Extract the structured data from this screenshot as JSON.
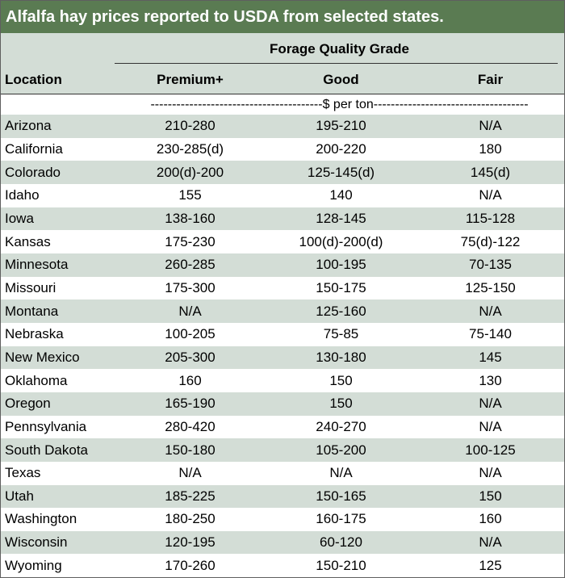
{
  "title": "Alfalfa hay prices reported to USDA from selected states.",
  "group_label": "Forage Quality Grade",
  "columns": {
    "location": "Location",
    "premium": "Premium+",
    "good": "Good",
    "fair": "Fair"
  },
  "units": "----------------------------------------$ per ton------------------------------------",
  "rows": [
    {
      "location": "Arizona",
      "premium": "210-280",
      "good": "195-210",
      "fair": "N/A"
    },
    {
      "location": "California",
      "premium": "230-285(d)",
      "good": "200-220",
      "fair": "180"
    },
    {
      "location": "Colorado",
      "premium": "200(d)-200",
      "good": "125-145(d)",
      "fair": "145(d)"
    },
    {
      "location": "Idaho",
      "premium": "155",
      "good": "140",
      "fair": "N/A"
    },
    {
      "location": "Iowa",
      "premium": "138-160",
      "good": "128-145",
      "fair": "115-128"
    },
    {
      "location": "Kansas",
      "premium": "175-230",
      "good": "100(d)-200(d)",
      "fair": "75(d)-122"
    },
    {
      "location": "Minnesota",
      "premium": "260-285",
      "good": "100-195",
      "fair": "70-135"
    },
    {
      "location": "Missouri",
      "premium": "175-300",
      "good": "150-175",
      "fair": "125-150"
    },
    {
      "location": "Montana",
      "premium": "N/A",
      "good": "125-160",
      "fair": "N/A"
    },
    {
      "location": "Nebraska",
      "premium": "100-205",
      "good": "75-85",
      "fair": "75-140"
    },
    {
      "location": "New Mexico",
      "premium": "205-300",
      "good": "130-180",
      "fair": "145"
    },
    {
      "location": "Oklahoma",
      "premium": "160",
      "good": "150",
      "fair": "130"
    },
    {
      "location": "Oregon",
      "premium": "165-190",
      "good": "150",
      "fair": "N/A"
    },
    {
      "location": "Pennsylvania",
      "premium": "280-420",
      "good": "240-270",
      "fair": "N/A"
    },
    {
      "location": "South Dakota",
      "premium": "150-180",
      "good": "105-200",
      "fair": "100-125"
    },
    {
      "location": "Texas",
      "premium": "N/A",
      "good": "N/A",
      "fair": "N/A"
    },
    {
      "location": "Utah",
      "premium": "185-225",
      "good": "150-165",
      "fair": "150"
    },
    {
      "location": "Washington",
      "premium": "180-250",
      "good": "160-175",
      "fair": "160"
    },
    {
      "location": "Wisconsin",
      "premium": "120-195",
      "good": "60-120",
      "fair": "N/A"
    },
    {
      "location": "Wyoming",
      "premium": "170-260",
      "good": "150-210",
      "fair": "125"
    }
  ]
}
